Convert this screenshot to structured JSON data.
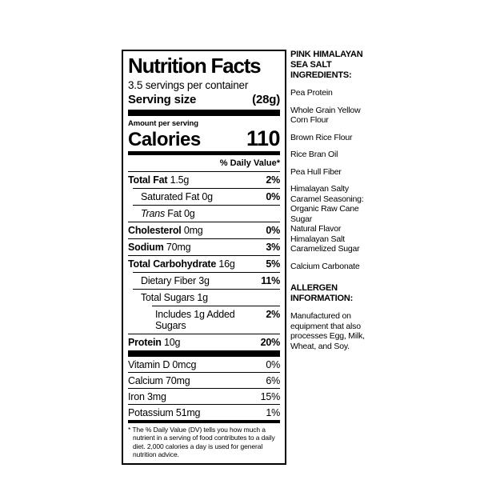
{
  "colors": {
    "ink": "#000000",
    "background": "#ffffff"
  },
  "label": {
    "title": "Nutrition Facts",
    "servings_per_container": "3.5 servings per container",
    "serving_size_label": "Serving size",
    "serving_size_value": "(28g)",
    "amount_per_serving": "Amount per serving",
    "calories_label": "Calories",
    "calories_value": "110",
    "daily_value_header": "% Daily Value*",
    "nutrients": [
      {
        "name": "Total Fat",
        "amount": "1.5g",
        "pct": "2%",
        "bold": true,
        "indent": 0
      },
      {
        "name": "Saturated Fat",
        "amount": "0g",
        "pct": "0%",
        "bold": false,
        "indent": 1
      },
      {
        "name": "Trans Fat",
        "amount": "0g",
        "pct": "",
        "bold": false,
        "indent": 1,
        "italic_first_word": true
      },
      {
        "name": "Cholesterol",
        "amount": "0mg",
        "pct": "0%",
        "bold": true,
        "indent": 0
      },
      {
        "name": "Sodium",
        "amount": "70mg",
        "pct": "3%",
        "bold": true,
        "indent": 0
      },
      {
        "name": "Total Carbohydrate",
        "amount": "16g",
        "pct": "5%",
        "bold": true,
        "indent": 0
      },
      {
        "name": "Dietary Fiber",
        "amount": "3g",
        "pct": "11%",
        "bold": false,
        "indent": 1
      },
      {
        "name": "Total Sugars",
        "amount": "1g",
        "pct": "",
        "bold": false,
        "indent": 1
      },
      {
        "name": "Includes 1g Added Sugars",
        "amount": "",
        "pct": "2%",
        "bold": false,
        "indent": 2
      },
      {
        "name": "Protein",
        "amount": "10g",
        "pct": "20%",
        "bold": true,
        "indent": 0
      }
    ],
    "vitamins": [
      {
        "name": "Vitamin D",
        "amount": "0mcg",
        "pct": "0%"
      },
      {
        "name": "Calcium",
        "amount": "70mg",
        "pct": "6%"
      },
      {
        "name": "Iron",
        "amount": "3mg",
        "pct": "15%"
      },
      {
        "name": "Potassium",
        "amount": "51mg",
        "pct": "1%"
      }
    ],
    "footnote": "* The % Daily Value (DV) tells you how much a nutrient in a serving of food contributes to a daily diet. 2,000 calories a day is used for general nutrition advice."
  },
  "side_panel": {
    "blocks": [
      {
        "bold": true,
        "extra_gap": false,
        "lines": [
          "PINK HIMALAYAN",
          "SEA SALT",
          "INGREDIENTS:"
        ]
      },
      {
        "bold": false,
        "extra_gap": false,
        "lines": [
          "Pea Protein"
        ]
      },
      {
        "bold": false,
        "extra_gap": false,
        "lines": [
          "Whole Grain Yellow",
          "Corn Flour"
        ]
      },
      {
        "bold": false,
        "extra_gap": false,
        "lines": [
          "Brown Rice Flour"
        ]
      },
      {
        "bold": false,
        "extra_gap": false,
        "lines": [
          "Rice Bran Oil"
        ]
      },
      {
        "bold": false,
        "extra_gap": false,
        "lines": [
          "Pea Hull Fiber"
        ]
      },
      {
        "bold": false,
        "extra_gap": false,
        "lines": [
          "Himalayan Salty",
          "Caramel Seasoning:",
          "Organic Raw Cane Sugar",
          "Natural Flavor",
          "Himalayan Salt",
          "Caramelized Sugar"
        ]
      },
      {
        "bold": false,
        "extra_gap": false,
        "lines": [
          "Calcium Carbonate"
        ]
      },
      {
        "bold": true,
        "extra_gap": true,
        "lines": [
          "ALLERGEN",
          "INFORMATION:"
        ]
      },
      {
        "bold": false,
        "extra_gap": false,
        "lines": [
          "Manufactured on",
          "equipment that also",
          "processes Egg, Milk,",
          "Wheat, and Soy."
        ]
      }
    ]
  }
}
